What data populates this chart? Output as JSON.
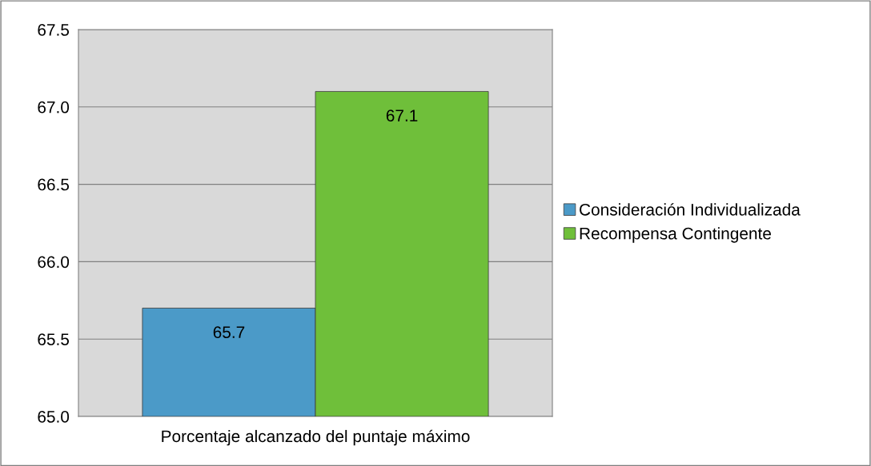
{
  "chart_data": {
    "type": "bar",
    "categories": [
      "Porcentaje alcanzado del puntaje máximo"
    ],
    "series": [
      {
        "name": "Consideración Individualizada",
        "color": "#4b9ac8",
        "values": [
          65.7
        ]
      },
      {
        "name": "Recompensa Contingente",
        "color": "#6fbf3a",
        "values": [
          67.1
        ]
      }
    ],
    "ylim": [
      65.0,
      67.5
    ],
    "yticks": [
      {
        "value": 65.0,
        "label": "65.0"
      },
      {
        "value": 65.5,
        "label": "65.5"
      },
      {
        "value": 66.0,
        "label": "66.0"
      },
      {
        "value": 66.5,
        "label": "66.5"
      },
      {
        "value": 67.0,
        "label": "67.0"
      },
      {
        "value": 67.5,
        "label": "67.5"
      }
    ],
    "grid": "y",
    "legend": "right",
    "data_labels": true
  }
}
